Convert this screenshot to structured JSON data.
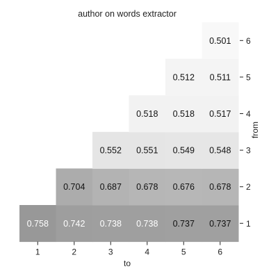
{
  "chart_data": {
    "type": "heatmap",
    "title": "author on words extractor",
    "xlabel": "to",
    "ylabel": "from",
    "x_categories": [
      "1",
      "2",
      "3",
      "4",
      "5",
      "6"
    ],
    "y_categories": [
      "1",
      "2",
      "3",
      "4",
      "5",
      "6"
    ],
    "y_axis_position": "right",
    "grid": false,
    "colorbar": false,
    "cells": [
      {
        "from": 1,
        "to": 1,
        "value": 0.758,
        "label": "0.758"
      },
      {
        "from": 1,
        "to": 2,
        "value": 0.742,
        "label": "0.742"
      },
      {
        "from": 1,
        "to": 3,
        "value": 0.738,
        "label": "0.738"
      },
      {
        "from": 1,
        "to": 4,
        "value": 0.738,
        "label": "0.738"
      },
      {
        "from": 1,
        "to": 5,
        "value": 0.737,
        "label": "0.737"
      },
      {
        "from": 1,
        "to": 6,
        "value": 0.737,
        "label": "0.737"
      },
      {
        "from": 2,
        "to": 2,
        "value": 0.704,
        "label": "0.704"
      },
      {
        "from": 2,
        "to": 3,
        "value": 0.687,
        "label": "0.687"
      },
      {
        "from": 2,
        "to": 4,
        "value": 0.678,
        "label": "0.678"
      },
      {
        "from": 2,
        "to": 5,
        "value": 0.676,
        "label": "0.676"
      },
      {
        "from": 2,
        "to": 6,
        "value": 0.678,
        "label": "0.678"
      },
      {
        "from": 3,
        "to": 3,
        "value": 0.552,
        "label": "0.552"
      },
      {
        "from": 3,
        "to": 4,
        "value": 0.551,
        "label": "0.551"
      },
      {
        "from": 3,
        "to": 5,
        "value": 0.549,
        "label": "0.549"
      },
      {
        "from": 3,
        "to": 6,
        "value": 0.548,
        "label": "0.548"
      },
      {
        "from": 4,
        "to": 4,
        "value": 0.518,
        "label": "0.518"
      },
      {
        "from": 4,
        "to": 5,
        "value": 0.518,
        "label": "0.518"
      },
      {
        "from": 4,
        "to": 6,
        "value": 0.517,
        "label": "0.517"
      },
      {
        "from": 5,
        "to": 5,
        "value": 0.512,
        "label": "0.512"
      },
      {
        "from": 5,
        "to": 6,
        "value": 0.511,
        "label": "0.511"
      },
      {
        "from": 6,
        "to": 6,
        "value": 0.501,
        "label": "0.501"
      }
    ]
  }
}
